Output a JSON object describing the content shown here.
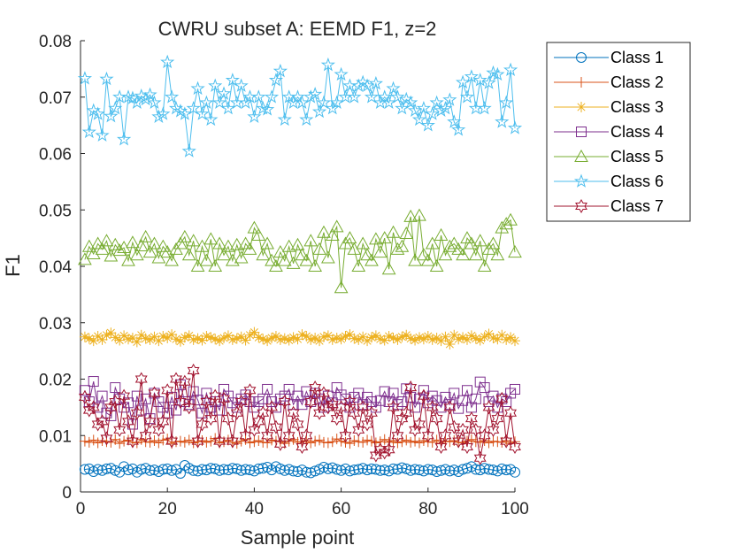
{
  "chart_data": {
    "type": "line",
    "title": "CWRU subset A: EEMD F1, z=2",
    "xlabel": "Sample point",
    "ylabel": "F1",
    "xlim": [
      0,
      100
    ],
    "ylim": [
      0,
      0.08
    ],
    "x_ticks": [
      "0",
      "20",
      "40",
      "60",
      "80",
      "100"
    ],
    "y_ticks": [
      "0",
      "0.01",
      "0.02",
      "0.03",
      "0.04",
      "0.05",
      "0.06",
      "0.07",
      "0.08"
    ],
    "grid": false,
    "legend_position": "outside top-right",
    "x": [
      1,
      2,
      3,
      4,
      5,
      6,
      7,
      8,
      9,
      10,
      11,
      12,
      13,
      14,
      15,
      16,
      17,
      18,
      19,
      20,
      21,
      22,
      23,
      24,
      25,
      26,
      27,
      28,
      29,
      30,
      31,
      32,
      33,
      34,
      35,
      36,
      37,
      38,
      39,
      40,
      41,
      42,
      43,
      44,
      45,
      46,
      47,
      48,
      49,
      50,
      51,
      52,
      53,
      54,
      55,
      56,
      57,
      58,
      59,
      60,
      61,
      62,
      63,
      64,
      65,
      66,
      67,
      68,
      69,
      70,
      71,
      72,
      73,
      74,
      75,
      76,
      77,
      78,
      79,
      80,
      81,
      82,
      83,
      84,
      85,
      86,
      87,
      88,
      89,
      90,
      91,
      92,
      93,
      94,
      95,
      96,
      97,
      98,
      99,
      100
    ],
    "series": [
      {
        "name": "Class 1",
        "color": "#0072BD",
        "marker": "circle",
        "values": [
          0.004,
          0.0041,
          0.0036,
          0.004,
          0.0038,
          0.0041,
          0.0042,
          0.0038,
          0.0035,
          0.0045,
          0.0039,
          0.0041,
          0.0035,
          0.004,
          0.0042,
          0.0038,
          0.0039,
          0.0036,
          0.004,
          0.0041,
          0.0038,
          0.004,
          0.0033,
          0.0047,
          0.0042,
          0.0038,
          0.0037,
          0.004,
          0.0039,
          0.0042,
          0.0041,
          0.0038,
          0.004,
          0.0039,
          0.0042,
          0.0041,
          0.0038,
          0.004,
          0.0039,
          0.0037,
          0.0041,
          0.0042,
          0.0044,
          0.0039,
          0.0045,
          0.0041,
          0.0038,
          0.004,
          0.0037,
          0.0036,
          0.0039,
          0.0035,
          0.0034,
          0.0037,
          0.004,
          0.0044,
          0.0041,
          0.0043,
          0.004,
          0.0038,
          0.0041,
          0.0037,
          0.0039,
          0.004,
          0.0042,
          0.0039,
          0.0041,
          0.004,
          0.0038,
          0.0039,
          0.0037,
          0.0041,
          0.004,
          0.0043,
          0.0041,
          0.0038,
          0.004,
          0.0039,
          0.0037,
          0.004,
          0.0039,
          0.0036,
          0.0038,
          0.004,
          0.0037,
          0.0039,
          0.0036,
          0.004,
          0.0042,
          0.0045,
          0.004,
          0.0039,
          0.0042,
          0.004,
          0.0039,
          0.0037,
          0.0041,
          0.0039,
          0.004,
          0.0035
        ]
      },
      {
        "name": "Class 2",
        "color": "#D95319",
        "marker": "plus",
        "values": [
          0.009,
          0.0088,
          0.0092,
          0.0087,
          0.0091,
          0.0089,
          0.0088,
          0.0093,
          0.0086,
          0.009,
          0.0092,
          0.0088,
          0.0087,
          0.0093,
          0.0089,
          0.0088,
          0.0091,
          0.0087,
          0.0092,
          0.0094,
          0.0086,
          0.0089,
          0.009,
          0.0088,
          0.0092,
          0.0087,
          0.0089,
          0.0091,
          0.0088,
          0.009,
          0.0095,
          0.0087,
          0.0089,
          0.0092,
          0.0088,
          0.0086,
          0.009,
          0.0093,
          0.0087,
          0.0089,
          0.0091,
          0.0088,
          0.0087,
          0.0092,
          0.009,
          0.0089,
          0.0086,
          0.009,
          0.0093,
          0.0088,
          0.0089,
          0.0091,
          0.0087,
          0.009,
          0.0092,
          0.0088,
          0.0087,
          0.0089,
          0.0094,
          0.009,
          0.0088,
          0.0086,
          0.0091,
          0.0089,
          0.0088,
          0.0092,
          0.009,
          0.0087,
          0.0089,
          0.0093,
          0.0088,
          0.0091,
          0.0087,
          0.0089,
          0.0092,
          0.0088,
          0.009,
          0.0087,
          0.0091,
          0.0089,
          0.0088,
          0.0092,
          0.0086,
          0.009,
          0.0089,
          0.0091,
          0.0088,
          0.0087,
          0.009,
          0.0093,
          0.0089,
          0.0088,
          0.0091,
          0.0087,
          0.009,
          0.0089,
          0.0088,
          0.0091,
          0.0086,
          0.0089
        ]
      },
      {
        "name": "Class 3",
        "color": "#EDB120",
        "marker": "asterisk",
        "values": [
          0.0275,
          0.0272,
          0.0268,
          0.0276,
          0.027,
          0.0278,
          0.0282,
          0.0274,
          0.0269,
          0.0277,
          0.0271,
          0.0273,
          0.0266,
          0.0278,
          0.0272,
          0.027,
          0.0275,
          0.0268,
          0.0276,
          0.0273,
          0.0279,
          0.0271,
          0.0267,
          0.0274,
          0.0277,
          0.027,
          0.0272,
          0.0269,
          0.0276,
          0.0274,
          0.0271,
          0.0268,
          0.0273,
          0.0277,
          0.027,
          0.0272,
          0.0275,
          0.0269,
          0.0278,
          0.0283,
          0.0274,
          0.0271,
          0.0268,
          0.0273,
          0.0276,
          0.027,
          0.0272,
          0.0269,
          0.0274,
          0.0271,
          0.0279,
          0.0276,
          0.027,
          0.0273,
          0.0268,
          0.0275,
          0.0277,
          0.027,
          0.0273,
          0.0271,
          0.0276,
          0.0279,
          0.0272,
          0.027,
          0.0275,
          0.0268,
          0.0274,
          0.0277,
          0.0271,
          0.0269,
          0.0276,
          0.0273,
          0.027,
          0.0275,
          0.0278,
          0.0272,
          0.0269,
          0.0274,
          0.0271,
          0.0276,
          0.027,
          0.0273,
          0.0268,
          0.0275,
          0.0262,
          0.0278,
          0.0271,
          0.0274,
          0.027,
          0.0277,
          0.0272,
          0.0269,
          0.0275,
          0.028,
          0.0273,
          0.0271,
          0.0278,
          0.027,
          0.0274,
          0.0268
        ]
      },
      {
        "name": "Class 4",
        "color": "#7E2F8E",
        "marker": "square",
        "values": [
          0.018,
          0.016,
          0.0196,
          0.015,
          0.017,
          0.014,
          0.0135,
          0.0185,
          0.0165,
          0.015,
          0.0158,
          0.012,
          0.017,
          0.0145,
          0.0165,
          0.013,
          0.0175,
          0.016,
          0.015,
          0.014,
          0.0168,
          0.0145,
          0.019,
          0.016,
          0.0155,
          0.0178,
          0.0163,
          0.014,
          0.0175,
          0.015,
          0.016,
          0.0145,
          0.0182,
          0.017,
          0.0158,
          0.015,
          0.0165,
          0.0172,
          0.016,
          0.015,
          0.016,
          0.0165,
          0.0182,
          0.016,
          0.015,
          0.0165,
          0.017,
          0.0182,
          0.0155,
          0.017,
          0.0155,
          0.0178,
          0.016,
          0.0175,
          0.0165,
          0.015,
          0.017,
          0.0158,
          0.0185,
          0.0172,
          0.0165,
          0.015,
          0.0168,
          0.0175,
          0.0155,
          0.0168,
          0.016,
          0.015,
          0.0162,
          0.0178,
          0.016,
          0.0175,
          0.0155,
          0.016,
          0.0183,
          0.0168,
          0.015,
          0.0165,
          0.018,
          0.0158,
          0.017,
          0.0162,
          0.015,
          0.0168,
          0.0155,
          0.0175,
          0.0148,
          0.0162,
          0.018,
          0.015,
          0.0165,
          0.0195,
          0.0185,
          0.016,
          0.017,
          0.015,
          0.0165,
          0.016,
          0.0175,
          0.0182
        ]
      },
      {
        "name": "Class 5",
        "color": "#77AC30",
        "marker": "triangle",
        "values": [
          0.0412,
          0.0435,
          0.0422,
          0.044,
          0.043,
          0.0445,
          0.0418,
          0.0438,
          0.0428,
          0.0433,
          0.041,
          0.0442,
          0.042,
          0.0436,
          0.0452,
          0.0425,
          0.044,
          0.0415,
          0.0435,
          0.0425,
          0.041,
          0.043,
          0.044,
          0.0452,
          0.042,
          0.0445,
          0.04,
          0.0435,
          0.041,
          0.0448,
          0.04,
          0.044,
          0.042,
          0.0435,
          0.041,
          0.0438,
          0.0415,
          0.044,
          0.043,
          0.0468,
          0.0455,
          0.042,
          0.044,
          0.041,
          0.04,
          0.0425,
          0.041,
          0.0435,
          0.0405,
          0.0438,
          0.042,
          0.041,
          0.0445,
          0.04,
          0.043,
          0.046,
          0.0415,
          0.0455,
          0.047,
          0.0362,
          0.044,
          0.045,
          0.043,
          0.04,
          0.044,
          0.042,
          0.041,
          0.0448,
          0.0425,
          0.045,
          0.0395,
          0.046,
          0.043,
          0.0435,
          0.0458,
          0.0488,
          0.041,
          0.049,
          0.042,
          0.041,
          0.044,
          0.04,
          0.0455,
          0.042,
          0.0435,
          0.044,
          0.043,
          0.042,
          0.045,
          0.044,
          0.042,
          0.0445,
          0.04,
          0.043,
          0.044,
          0.042,
          0.0468,
          0.0475,
          0.0482,
          0.0425
        ]
      },
      {
        "name": "Class 6",
        "color": "#4DBEEE",
        "marker": "pentagram",
        "values": [
          0.0733,
          0.0638,
          0.0676,
          0.067,
          0.0632,
          0.0732,
          0.0666,
          0.068,
          0.07,
          0.0625,
          0.07,
          0.0698,
          0.069,
          0.0702,
          0.0696,
          0.0704,
          0.069,
          0.0665,
          0.067,
          0.0762,
          0.07,
          0.068,
          0.0675,
          0.067,
          0.0604,
          0.068,
          0.0715,
          0.067,
          0.069,
          0.066,
          0.072,
          0.069,
          0.0706,
          0.068,
          0.073,
          0.069,
          0.072,
          0.069,
          0.07,
          0.0665,
          0.07,
          0.068,
          0.0678,
          0.07,
          0.073,
          0.0746,
          0.066,
          0.07,
          0.069,
          0.07,
          0.069,
          0.066,
          0.07,
          0.0705,
          0.0674,
          0.069,
          0.0757,
          0.068,
          0.069,
          0.074,
          0.07,
          0.072,
          0.07,
          0.072,
          0.0726,
          0.072,
          0.07,
          0.0724,
          0.069,
          0.07,
          0.069,
          0.0715,
          0.07,
          0.068,
          0.0696,
          0.069,
          0.0676,
          0.066,
          0.068,
          0.065,
          0.067,
          0.069,
          0.0676,
          0.068,
          0.0695,
          0.0656,
          0.0642,
          0.0726,
          0.07,
          0.0736,
          0.068,
          0.073,
          0.068,
          0.0725,
          0.0743,
          0.074,
          0.0656,
          0.069,
          0.0748,
          0.0645
        ]
      },
      {
        "name": "Class 7",
        "color": "#A2142F",
        "marker": "hexagram",
        "values": [
          0.0168,
          0.0145,
          0.015,
          0.012,
          0.0125,
          0.0095,
          0.015,
          0.016,
          0.011,
          0.017,
          0.0125,
          0.009,
          0.014,
          0.02,
          0.01,
          0.0125,
          0.0175,
          0.011,
          0.0125,
          0.018,
          0.009,
          0.02,
          0.016,
          0.0195,
          0.015,
          0.0215,
          0.009,
          0.012,
          0.016,
          0.013,
          0.017,
          0.009,
          0.0165,
          0.013,
          0.009,
          0.014,
          0.016,
          0.01,
          0.018,
          0.011,
          0.0125,
          0.014,
          0.01,
          0.015,
          0.0115,
          0.0085,
          0.016,
          0.01,
          0.014,
          0.012,
          0.008,
          0.01,
          0.016,
          0.0185,
          0.014,
          0.0175,
          0.015,
          0.0155,
          0.013,
          0.015,
          0.01,
          0.016,
          0.014,
          0.011,
          0.015,
          0.012,
          0.014,
          0.0065,
          0.0075,
          0.007,
          0.0075,
          0.015,
          0.01,
          0.013,
          0.014,
          0.0185,
          0.011,
          0.012,
          0.017,
          0.01,
          0.015,
          0.013,
          0.008,
          0.01,
          0.015,
          0.0115,
          0.009,
          0.011,
          0.008,
          0.013,
          0.011,
          0.006,
          0.01,
          0.015,
          0.011,
          0.013,
          0.0165,
          0.009,
          0.014,
          0.008
        ]
      }
    ]
  }
}
